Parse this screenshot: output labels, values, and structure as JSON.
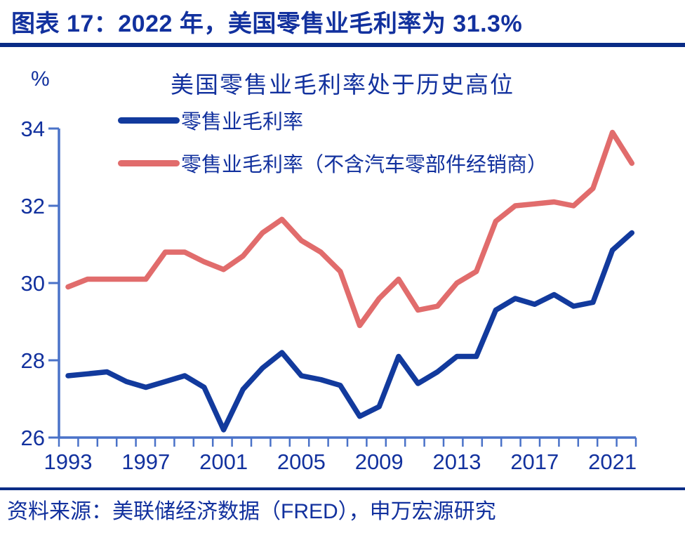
{
  "header": {
    "title": "图表 17：2022 年，美国零售业毛利率为 31.3%"
  },
  "footer": {
    "source": "资料来源：美联储经济数据（FRED），申万宏源研究"
  },
  "colors": {
    "dark_blue_text": "#12319E",
    "navy_rule": "#0A2C86",
    "axis_blue": "#4A72C8",
    "series_blue": "#123A9D",
    "series_red": "#E16C6C"
  },
  "chart_data": {
    "type": "line",
    "title": "美国零售业毛利率处于历史高位",
    "unit_label": "%",
    "ylabel": "%",
    "xlabel": "",
    "ylim": [
      26,
      34
    ],
    "y_ticks": [
      26,
      28,
      30,
      32,
      34
    ],
    "x_start_year": 1993,
    "x_end_year": 2022,
    "x_tick_labels": [
      1993,
      1997,
      2001,
      2005,
      2009,
      2013,
      2017,
      2021
    ],
    "grid": false,
    "legend_position": "top-left",
    "series": [
      {
        "name": "零售业毛利率",
        "color": "#123A9D",
        "values": [
          27.6,
          27.65,
          27.7,
          27.45,
          27.3,
          27.45,
          27.6,
          27.3,
          26.2,
          27.25,
          27.8,
          28.2,
          27.6,
          27.5,
          27.35,
          26.55,
          26.8,
          28.1,
          27.4,
          27.7,
          28.1,
          28.1,
          29.3,
          29.6,
          29.45,
          29.7,
          29.4,
          29.5,
          30.85,
          31.3
        ]
      },
      {
        "name": "零售业毛利率（不含汽车零部件经销商）",
        "color": "#E16C6C",
        "values": [
          29.9,
          30.1,
          30.1,
          30.1,
          30.1,
          30.8,
          30.8,
          30.55,
          30.35,
          30.7,
          31.3,
          31.65,
          31.1,
          30.8,
          30.3,
          28.9,
          29.6,
          30.1,
          29.3,
          29.4,
          30.0,
          30.3,
          31.6,
          32.0,
          32.05,
          32.1,
          32.0,
          32.45,
          33.9,
          33.1
        ]
      }
    ]
  }
}
